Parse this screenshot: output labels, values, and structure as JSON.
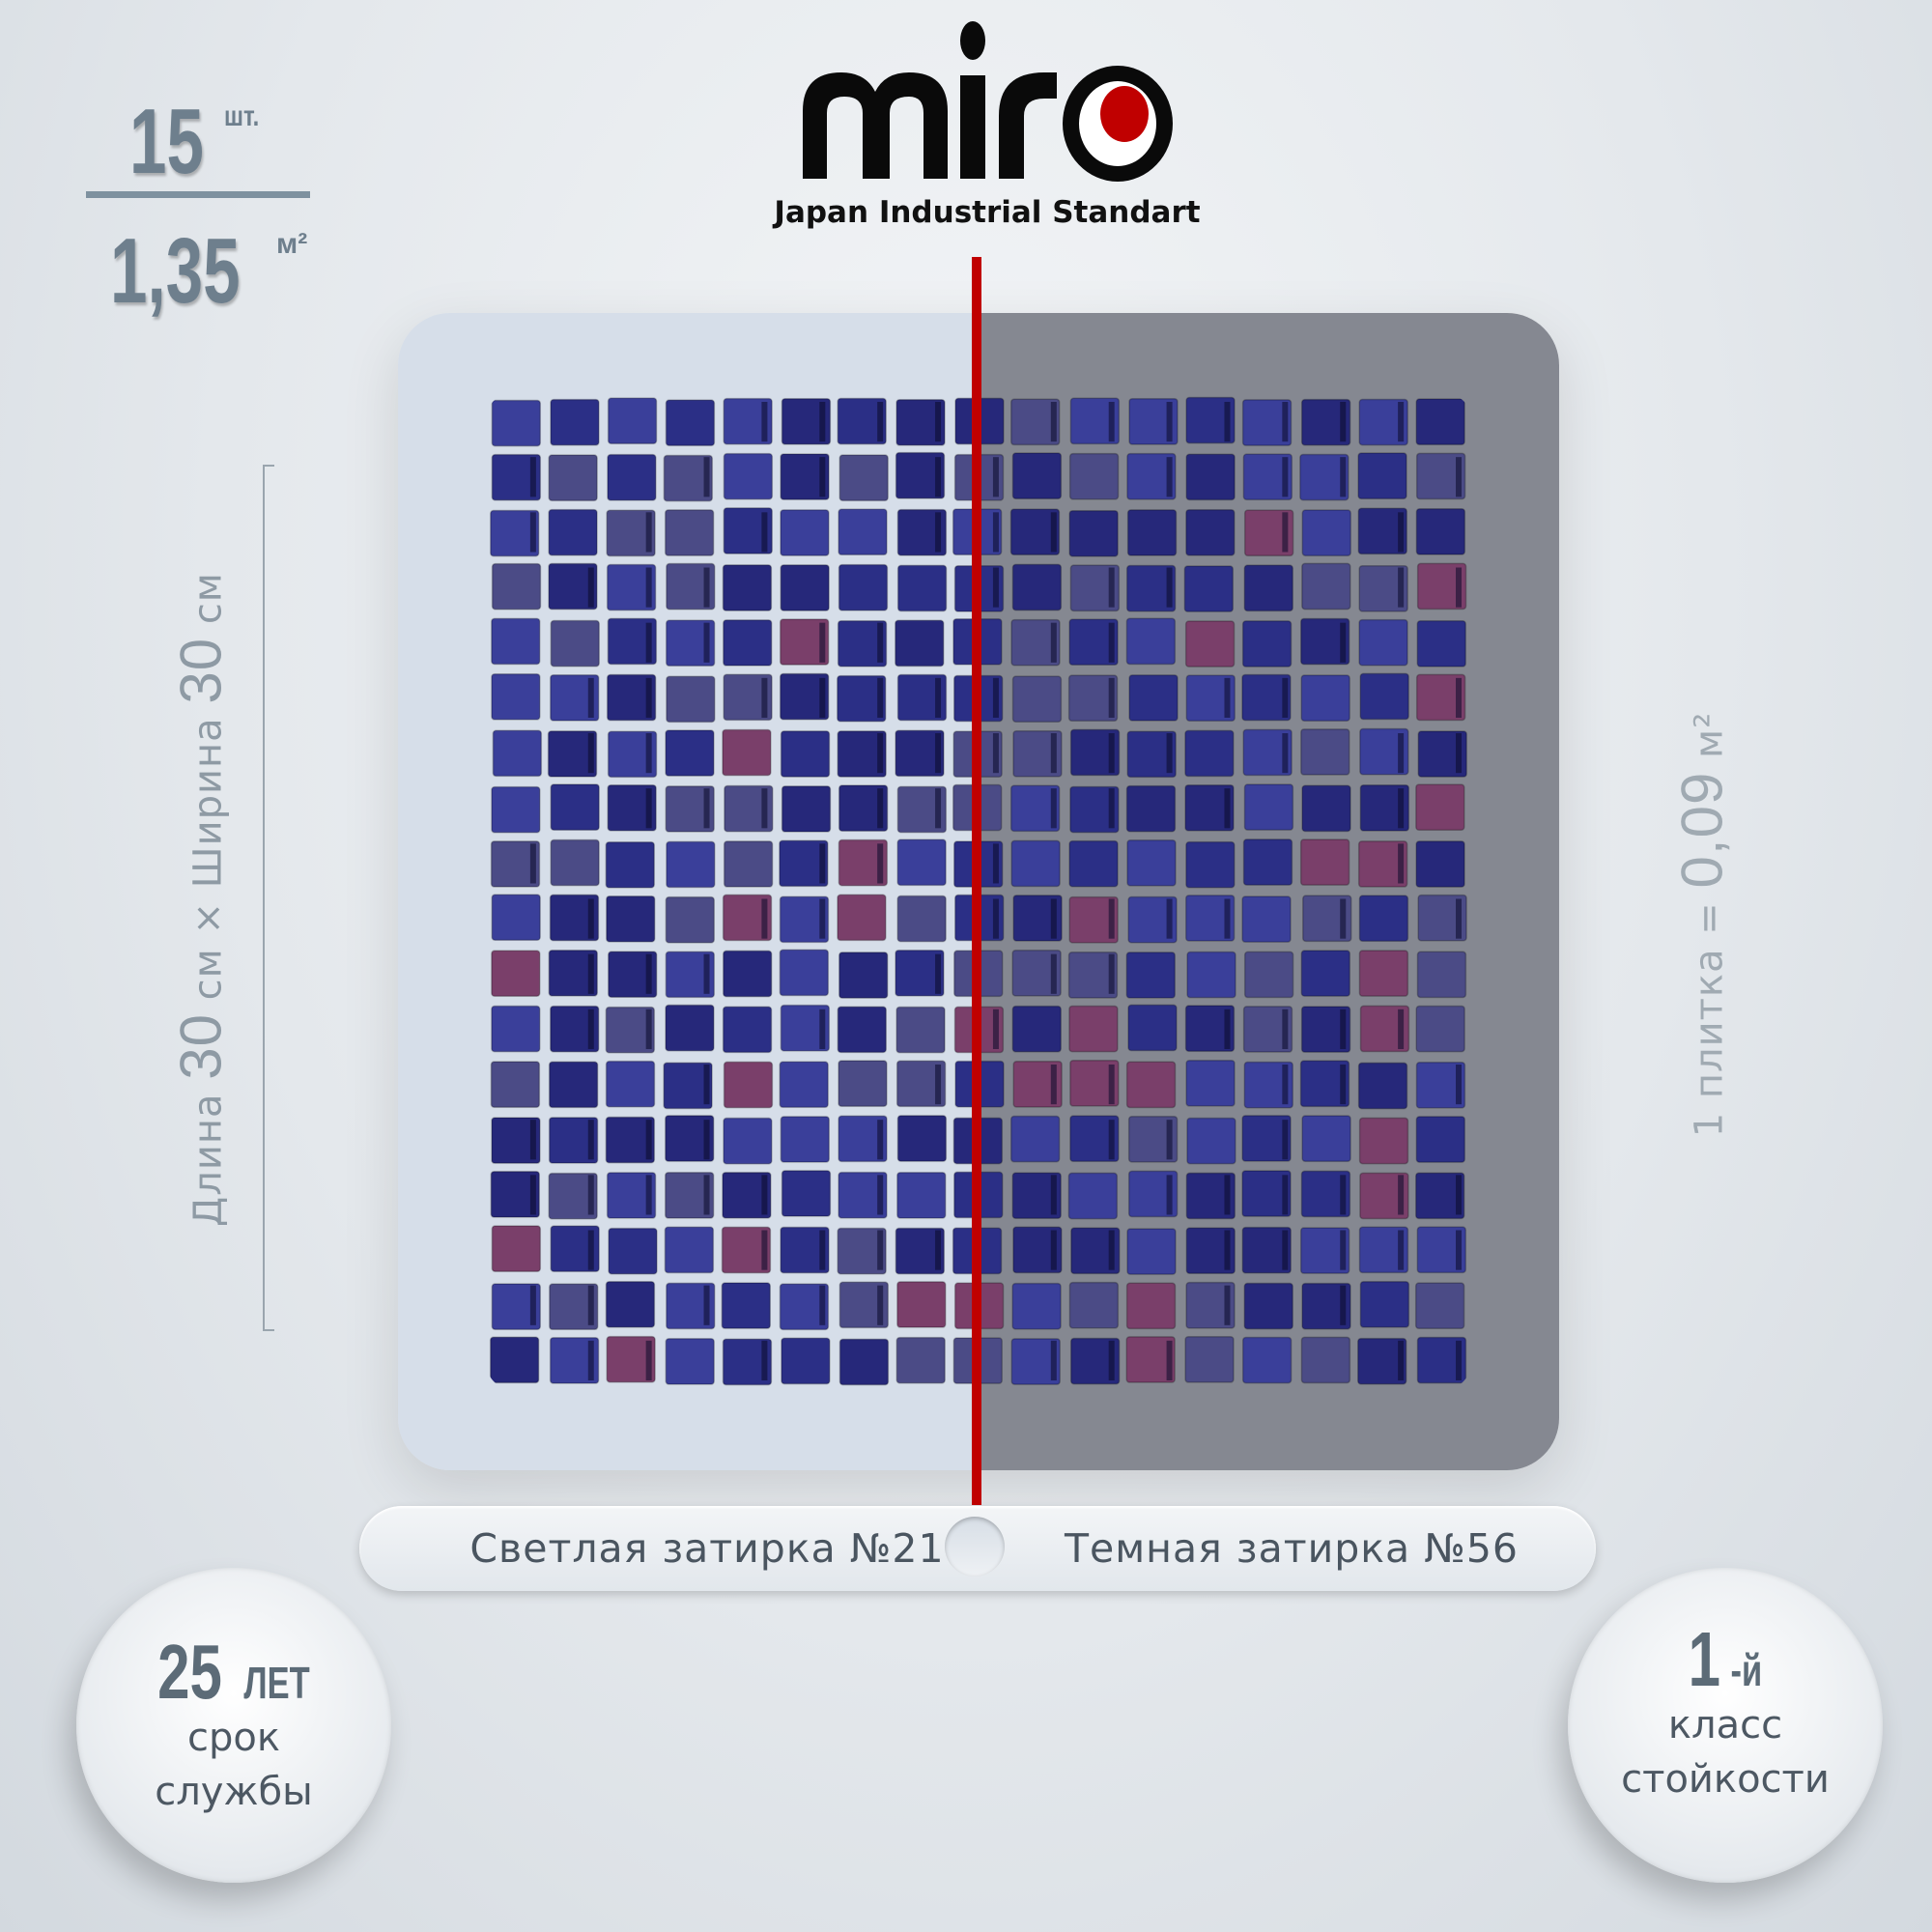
{
  "quantity": {
    "value": "15",
    "unit": "шт."
  },
  "area": {
    "value": "1,35",
    "unit": "м²"
  },
  "brand": {
    "logo_text": "miro",
    "tagline": "Japan Industrial Standart",
    "accent_color": "#c00000"
  },
  "dimensions": {
    "length_label": "Длина",
    "length_value": "30",
    "length_unit": "см",
    "times": "×",
    "width_label": "Ширина",
    "width_value": "30",
    "width_unit": "см"
  },
  "tile_area": {
    "label": "1 плитка =",
    "value": "0,09",
    "unit": "м²"
  },
  "grout": {
    "light": "Светлая затирка №21",
    "dark": "Темная затирка №56",
    "light_color": "#d6dee9",
    "dark_color": "#858891"
  },
  "badges": {
    "life": {
      "value": "25",
      "unit": "ЛЕТ",
      "line1": "срок",
      "line2": "службы"
    },
    "class": {
      "value": "1",
      "unit": "-й",
      "line1": "класс",
      "line2": "стойкости"
    }
  },
  "mosaic": {
    "columns": 17,
    "rows": 18,
    "tile_colors": [
      "#2b2f86",
      "#3a3f9a",
      "#4b4b86",
      "#26287a",
      "#7a3f6a"
    ]
  }
}
